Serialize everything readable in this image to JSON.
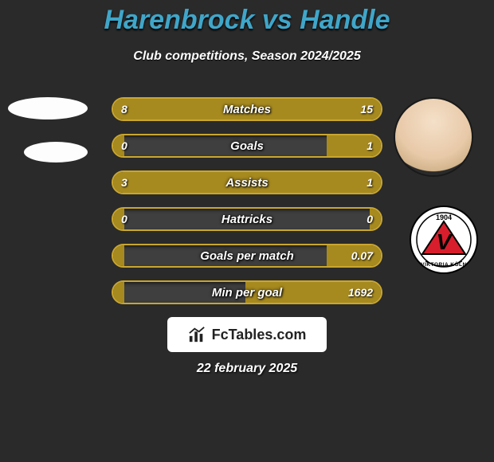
{
  "title": "Harenbrock vs Handle",
  "subtitle": "Club competitions, Season 2024/2025",
  "date": "22 february 2025",
  "footer_brand": "FcTables.com",
  "colors": {
    "background": "#2a2a2a",
    "title": "#3fa6c9",
    "bar_border": "#c9a62f",
    "bar_fill": "#a78a1f",
    "bar_track": "#3f3f3f",
    "text": "#ffffff"
  },
  "stats": [
    {
      "label": "Matches",
      "a": "8",
      "b": "15",
      "a_pct": 36,
      "b_pct": 64
    },
    {
      "label": "Goals",
      "a": "0",
      "b": "1",
      "a_pct": 4,
      "b_pct": 20
    },
    {
      "label": "Assists",
      "a": "3",
      "b": "1",
      "a_pct": 76,
      "b_pct": 24
    },
    {
      "label": "Hattricks",
      "a": "0",
      "b": "0",
      "a_pct": 4,
      "b_pct": 4
    },
    {
      "label": "Goals per match",
      "a": "",
      "b": "0.07",
      "a_pct": 4,
      "b_pct": 20
    },
    {
      "label": "Min per goal",
      "a": "",
      "b": "1692",
      "a_pct": 4,
      "b_pct": 50
    }
  ]
}
